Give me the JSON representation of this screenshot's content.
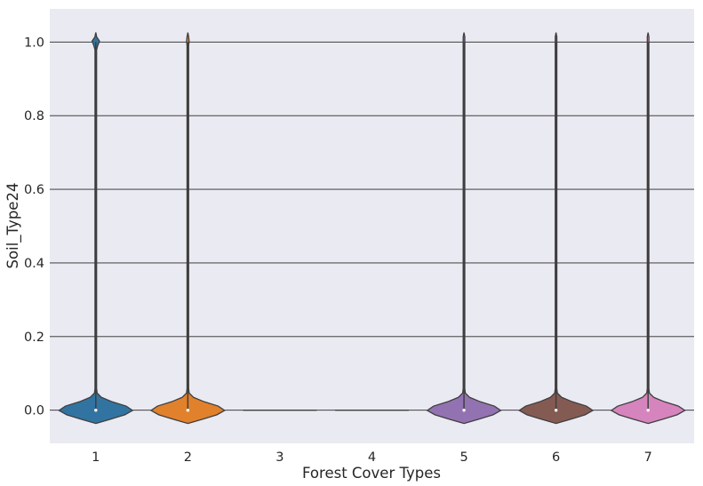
{
  "chart_data": {
    "type": "violin",
    "xlabel": "Forest Cover Types",
    "ylabel": "Soil_Type24",
    "ylim": [
      -0.09,
      1.09
    ],
    "grid": true,
    "categories": [
      "1",
      "2",
      "3",
      "4",
      "5",
      "6",
      "7"
    ],
    "y_ticks": [
      "0.0",
      "0.2",
      "0.4",
      "0.6",
      "0.8",
      "1.0"
    ],
    "y_tick_values": [
      0.0,
      0.2,
      0.4,
      0.6,
      0.8,
      1.0
    ],
    "violins": [
      {
        "category": "1",
        "color": "#3274a1",
        "min": 0,
        "max": 1,
        "median": 0,
        "share_at_one": 0.16
      },
      {
        "category": "2",
        "color": "#e1812c",
        "min": 0,
        "max": 1,
        "median": 0,
        "share_at_one": 0.06
      },
      {
        "category": "3",
        "color": "#3a923a",
        "min": 0,
        "max": 0,
        "median": 0,
        "share_at_one": 0.0
      },
      {
        "category": "4",
        "color": "#c03d3e",
        "min": 0,
        "max": 0,
        "median": 0,
        "share_at_one": 0.0
      },
      {
        "category": "5",
        "color": "#9372b2",
        "min": 0,
        "max": 1,
        "median": 0,
        "share_at_one": 0.01
      },
      {
        "category": "6",
        "color": "#845b53",
        "min": 0,
        "max": 1,
        "median": 0,
        "share_at_one": 0.01
      },
      {
        "category": "7",
        "color": "#d684bd",
        "min": 0,
        "max": 1,
        "median": 0,
        "share_at_one": 0.01
      }
    ]
  }
}
